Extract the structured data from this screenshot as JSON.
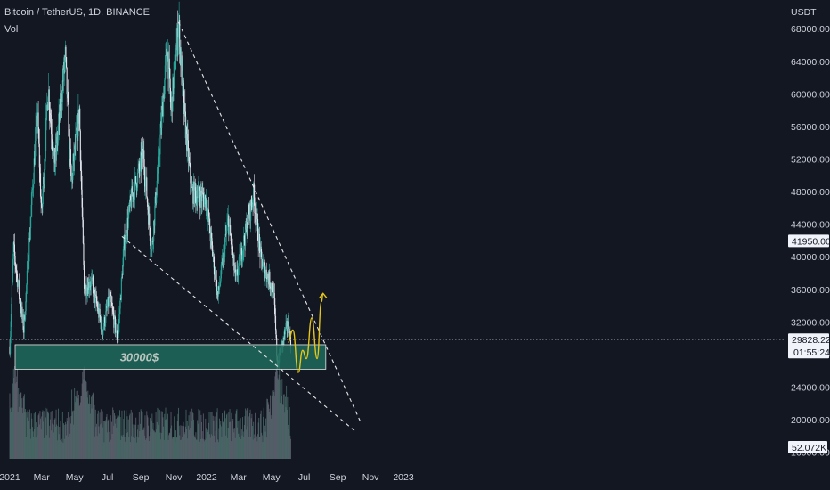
{
  "header": {
    "symbol": "Bitcoin / TetherUS, 1D, BINANCE",
    "indicator": "Vol"
  },
  "axis": {
    "currency": "USDT"
  },
  "chart_data": {
    "type": "candlestick",
    "x_ticks": [
      "2021",
      "Mar",
      "May",
      "Jul",
      "Sep",
      "Nov",
      "2022",
      "Mar",
      "May",
      "Jul",
      "Sep",
      "Nov",
      "2023"
    ],
    "y_ticks": [
      "68000.00",
      "64000.00",
      "60000.00",
      "56000.00",
      "52000.00",
      "48000.00",
      "44000.00",
      "40000.00",
      "36000.00",
      "32000.00",
      "28000.00",
      "24000.00",
      "20000.00",
      "16000.00"
    ],
    "ylim": [
      15000,
      70500
    ],
    "y_scale": "linear",
    "price_path": [
      [
        "2021-01-01",
        29000
      ],
      [
        "2021-01-08",
        41000
      ],
      [
        "2021-01-27",
        31000
      ],
      [
        "2021-02-10",
        46000
      ],
      [
        "2021-02-21",
        58000
      ],
      [
        "2021-03-01",
        45000
      ],
      [
        "2021-03-13",
        61000
      ],
      [
        "2021-03-25",
        51000
      ],
      [
        "2021-04-14",
        64500
      ],
      [
        "2021-04-25",
        49000
      ],
      [
        "2021-05-10",
        58000
      ],
      [
        "2021-05-19",
        36000
      ],
      [
        "2021-06-01",
        37000
      ],
      [
        "2021-06-22",
        31000
      ],
      [
        "2021-07-05",
        35000
      ],
      [
        "2021-07-20",
        29800
      ],
      [
        "2021-08-01",
        41500
      ],
      [
        "2021-08-14",
        47000
      ],
      [
        "2021-09-06",
        52500
      ],
      [
        "2021-09-21",
        40500
      ],
      [
        "2021-10-20",
        66000
      ],
      [
        "2021-10-27",
        58000
      ],
      [
        "2021-11-10",
        68800
      ],
      [
        "2021-11-20",
        58000
      ],
      [
        "2021-12-04",
        48000
      ],
      [
        "2021-12-31",
        47000
      ],
      [
        "2022-01-22",
        35000
      ],
      [
        "2022-02-10",
        44500
      ],
      [
        "2022-02-24",
        37000
      ],
      [
        "2022-03-29",
        47700
      ],
      [
        "2022-04-12",
        39500
      ],
      [
        "2022-05-05",
        36000
      ],
      [
        "2022-05-12",
        26800
      ],
      [
        "2022-05-31",
        31800
      ],
      [
        "2022-06-06",
        29828
      ]
    ],
    "volume_spikes": [
      "2021-01-11",
      "2021-05-19",
      "2022-05-12"
    ],
    "volume_current": "52.072K",
    "levels": [
      {
        "name": "resistance",
        "price": 41950,
        "label": "41950.00"
      },
      {
        "name": "last-price",
        "price": 29828.22,
        "label": "29828.22",
        "countdown": "01:55:24"
      }
    ],
    "zone": {
      "low": 26200,
      "high": 29200,
      "label": "30000$"
    },
    "trendlines": [
      {
        "name": "descending-resistance",
        "from": [
          "2021-11-10",
          68800
        ],
        "to": [
          "2022-10-15",
          19500
        ]
      },
      {
        "name": "descending-support",
        "from": [
          "2021-07-28",
          42500
        ],
        "to": [
          "2022-10-05",
          18500
        ]
      }
    ],
    "projection": [
      [
        "2022-06-01",
        29500
      ],
      [
        "2022-06-10",
        31000
      ],
      [
        "2022-06-20",
        25800
      ],
      [
        "2022-06-28",
        28500
      ],
      [
        "2022-07-05",
        27500
      ],
      [
        "2022-07-15",
        32500
      ],
      [
        "2022-07-25",
        27500
      ],
      [
        "2022-08-02",
        34500
      ],
      [
        "2022-08-05",
        35500
      ]
    ]
  },
  "colors": {
    "background": "#131722",
    "up": "#26a69a",
    "down": "#e0e3eb",
    "zone_fill": "#1f6b5c",
    "zone_text": "#b9c4bf",
    "projection": "#e6c619",
    "grid_line": "#e6e6e6"
  }
}
